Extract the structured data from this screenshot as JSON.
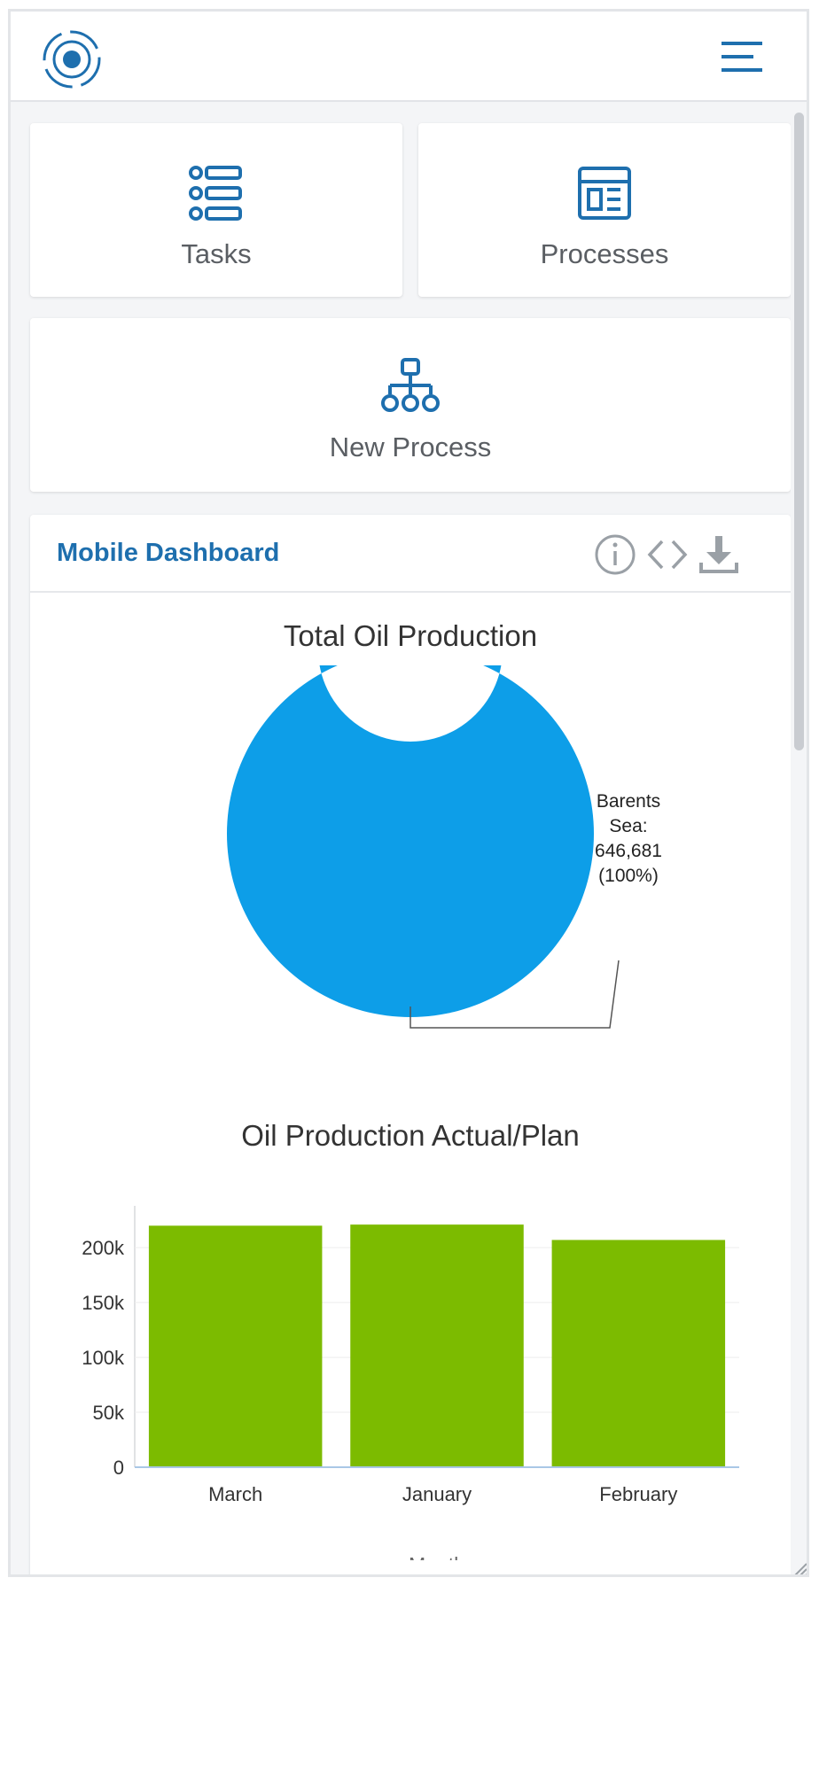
{
  "header": {
    "logo_icon": "radar-target-icon",
    "menu_icon": "hamburger-menu-icon",
    "accent_color": "#1e6fae"
  },
  "tiles": [
    {
      "label": "Tasks",
      "icon": "list-icon"
    },
    {
      "label": "Processes",
      "icon": "layout-icon"
    },
    {
      "label": "New Process",
      "icon": "hierarchy-icon"
    }
  ],
  "dashboard": {
    "title": "Mobile Dashboard",
    "actions": [
      "info-icon",
      "code-icon",
      "download-icon"
    ]
  },
  "chart_data": [
    {
      "type": "pie",
      "title": "Total Oil Production",
      "style": "donut",
      "slices": [
        {
          "label": "Barents Sea",
          "value": 646681,
          "percent": 100,
          "color": "#0d9ee8"
        }
      ],
      "annotation": [
        "Barents",
        "Sea:",
        "646,681",
        "(100%)"
      ]
    },
    {
      "type": "bar",
      "title": "Oil Production Actual/Plan",
      "categories": [
        "March",
        "January",
        "February"
      ],
      "values": [
        220000,
        221000,
        207000
      ],
      "xlabel": "Month",
      "ylabel": "",
      "ylim": [
        0,
        230000
      ],
      "yticks": [
        0,
        50000,
        100000,
        150000,
        200000
      ],
      "ytick_labels": [
        "0",
        "50k",
        "100k",
        "150k",
        "200k"
      ],
      "color": "#7cbb00",
      "grid": true
    }
  ]
}
